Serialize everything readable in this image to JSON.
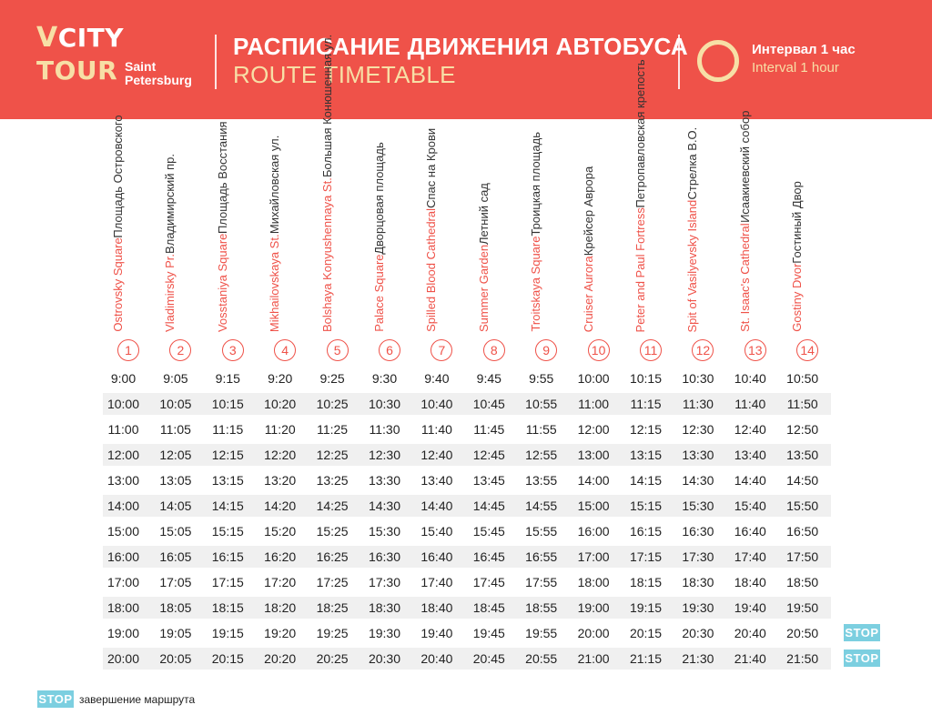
{
  "header": {
    "logo_v": "V",
    "logo_city": "CITY",
    "logo_tour": "TOUR",
    "logo_saint": "Saint",
    "logo_petersburg": "Petersburg",
    "title_ru": "РАСПИСАНИЕ ДВИЖЕНИЯ АВТОБУСА",
    "title_en": "ROUTE TIMETABLE",
    "interval_ru": "Интервал 1 час",
    "interval_en": "Interval 1 hour"
  },
  "stops": [
    {
      "num": "1",
      "ru": "Площадь Островского",
      "en": "Ostrovsky Square"
    },
    {
      "num": "2",
      "ru": "Владимирский пр.",
      "en": "Vladimirsky Pr."
    },
    {
      "num": "3",
      "ru": "Площадь Восстания",
      "en": "Vosstaniya Square"
    },
    {
      "num": "4",
      "ru": "Михайловская ул.",
      "en": "Mikhailovskaya St."
    },
    {
      "num": "5",
      "ru": "Большая Конюшенная ул.",
      "en": "Bolshaya Konyushennaya St."
    },
    {
      "num": "6",
      "ru": "Дворцовая площадь",
      "en": "Palace Square"
    },
    {
      "num": "7",
      "ru": "Спас на Крови",
      "en": "Spilled Blood Cathedral"
    },
    {
      "num": "8",
      "ru": "Летний сад",
      "en": "Summer Garden"
    },
    {
      "num": "9",
      "ru": "Троицкая площадь",
      "en": "Troitskaya Square"
    },
    {
      "num": "10",
      "ru": "Крейсер Аврора",
      "en": "Cruiser Aurora"
    },
    {
      "num": "11",
      "ru": "Петропавловская крепость",
      "en": "Peter and Paul Fortress"
    },
    {
      "num": "12",
      "ru": "Стрелка В.О.",
      "en": "Spit of Vasilyevsky Island"
    },
    {
      "num": "13",
      "ru": "Исаакиевский собор",
      "en": "St. Isaac's Cathedral"
    },
    {
      "num": "14",
      "ru": "Гостиный Двор",
      "en": "Gostiny Dvor"
    }
  ],
  "times": [
    [
      "9:00",
      "9:05",
      "9:15",
      "9:20",
      "9:25",
      "9:30",
      "9:40",
      "9:45",
      "9:55",
      "10:00",
      "10:15",
      "10:30",
      "10:40",
      "10:50"
    ],
    [
      "10:00",
      "10:05",
      "10:15",
      "10:20",
      "10:25",
      "10:30",
      "10:40",
      "10:45",
      "10:55",
      "11:00",
      "11:15",
      "11:30",
      "11:40",
      "11:50"
    ],
    [
      "11:00",
      "11:05",
      "11:15",
      "11:20",
      "11:25",
      "11:30",
      "11:40",
      "11:45",
      "11:55",
      "12:00",
      "12:15",
      "12:30",
      "12:40",
      "12:50"
    ],
    [
      "12:00",
      "12:05",
      "12:15",
      "12:20",
      "12:25",
      "12:30",
      "12:40",
      "12:45",
      "12:55",
      "13:00",
      "13:15",
      "13:30",
      "13:40",
      "13:50"
    ],
    [
      "13:00",
      "13:05",
      "13:15",
      "13:20",
      "13:25",
      "13:30",
      "13:40",
      "13:45",
      "13:55",
      "14:00",
      "14:15",
      "14:30",
      "14:40",
      "14:50"
    ],
    [
      "14:00",
      "14:05",
      "14:15",
      "14:20",
      "14:25",
      "14:30",
      "14:40",
      "14:45",
      "14:55",
      "15:00",
      "15:15",
      "15:30",
      "15:40",
      "15:50"
    ],
    [
      "15:00",
      "15:05",
      "15:15",
      "15:20",
      "15:25",
      "15:30",
      "15:40",
      "15:45",
      "15:55",
      "16:00",
      "16:15",
      "16:30",
      "16:40",
      "16:50"
    ],
    [
      "16:00",
      "16:05",
      "16:15",
      "16:20",
      "16:25",
      "16:30",
      "16:40",
      "16:45",
      "16:55",
      "17:00",
      "17:15",
      "17:30",
      "17:40",
      "17:50"
    ],
    [
      "17:00",
      "17:05",
      "17:15",
      "17:20",
      "17:25",
      "17:30",
      "17:40",
      "17:45",
      "17:55",
      "18:00",
      "18:15",
      "18:30",
      "18:40",
      "18:50"
    ],
    [
      "18:00",
      "18:05",
      "18:15",
      "18:20",
      "18:25",
      "18:30",
      "18:40",
      "18:45",
      "18:55",
      "19:00",
      "19:15",
      "19:30",
      "19:40",
      "19:50"
    ],
    [
      "19:00",
      "19:05",
      "19:15",
      "19:20",
      "19:25",
      "19:30",
      "19:40",
      "19:45",
      "19:55",
      "20:00",
      "20:15",
      "20:30",
      "20:40",
      "20:50"
    ],
    [
      "20:00",
      "20:05",
      "20:15",
      "20:20",
      "20:25",
      "20:30",
      "20:40",
      "20:45",
      "20:55",
      "21:00",
      "21:15",
      "21:30",
      "21:40",
      "21:50"
    ]
  ],
  "stop_badge_rows": [
    10,
    11
  ],
  "stop_label": "STOP",
  "legend": {
    "badge": "STOP",
    "text": "завершение маршрута"
  },
  "colors": {
    "brand_red": "#ef5249",
    "accent_cream": "#f7dfa6",
    "stop_blue": "#7ccfe0",
    "row_shade": "#f0f0f0"
  },
  "icons": {
    "interval": "circle-icon"
  }
}
